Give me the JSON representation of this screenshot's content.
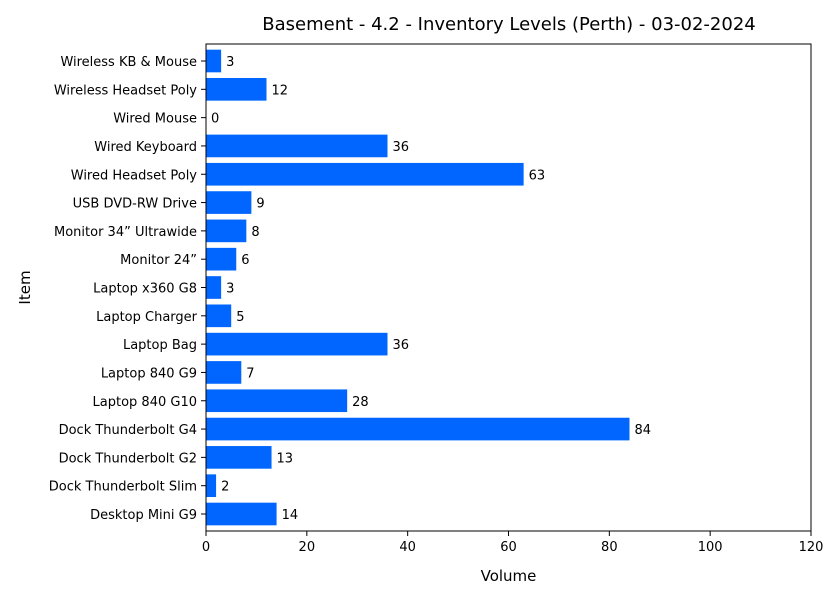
{
  "chart_data": {
    "type": "bar",
    "orientation": "horizontal",
    "title": "Basement - 4.2 - Inventory Levels (Perth) - 03-02-2024",
    "xlabel": "Volume",
    "ylabel": "Item",
    "xlim": [
      0,
      120
    ],
    "xticks": [
      0,
      20,
      40,
      60,
      80,
      100,
      120
    ],
    "grid": false,
    "bar_color": "#0066ff",
    "categories": [
      "Wireless KB & Mouse",
      "Wireless Headset Poly ",
      "Wired Mouse",
      "Wired Keyboard",
      "Wired Headset Poly",
      "USB DVD-RW Drive",
      "Monitor 34” Ultrawide",
      "Monitor 24” ",
      "Laptop x360 G8",
      "Laptop Charger ",
      "Laptop Bag",
      "Laptop 840 G9",
      "Laptop 840 G10",
      "Dock Thunderbolt G4",
      "Dock Thunderbolt G2",
      "Dock Thunderbolt Slim",
      "Desktop Mini G9"
    ],
    "values": [
      3,
      12,
      0,
      36,
      63,
      9,
      8,
      6,
      3,
      5,
      36,
      7,
      28,
      84,
      13,
      2,
      14
    ]
  }
}
